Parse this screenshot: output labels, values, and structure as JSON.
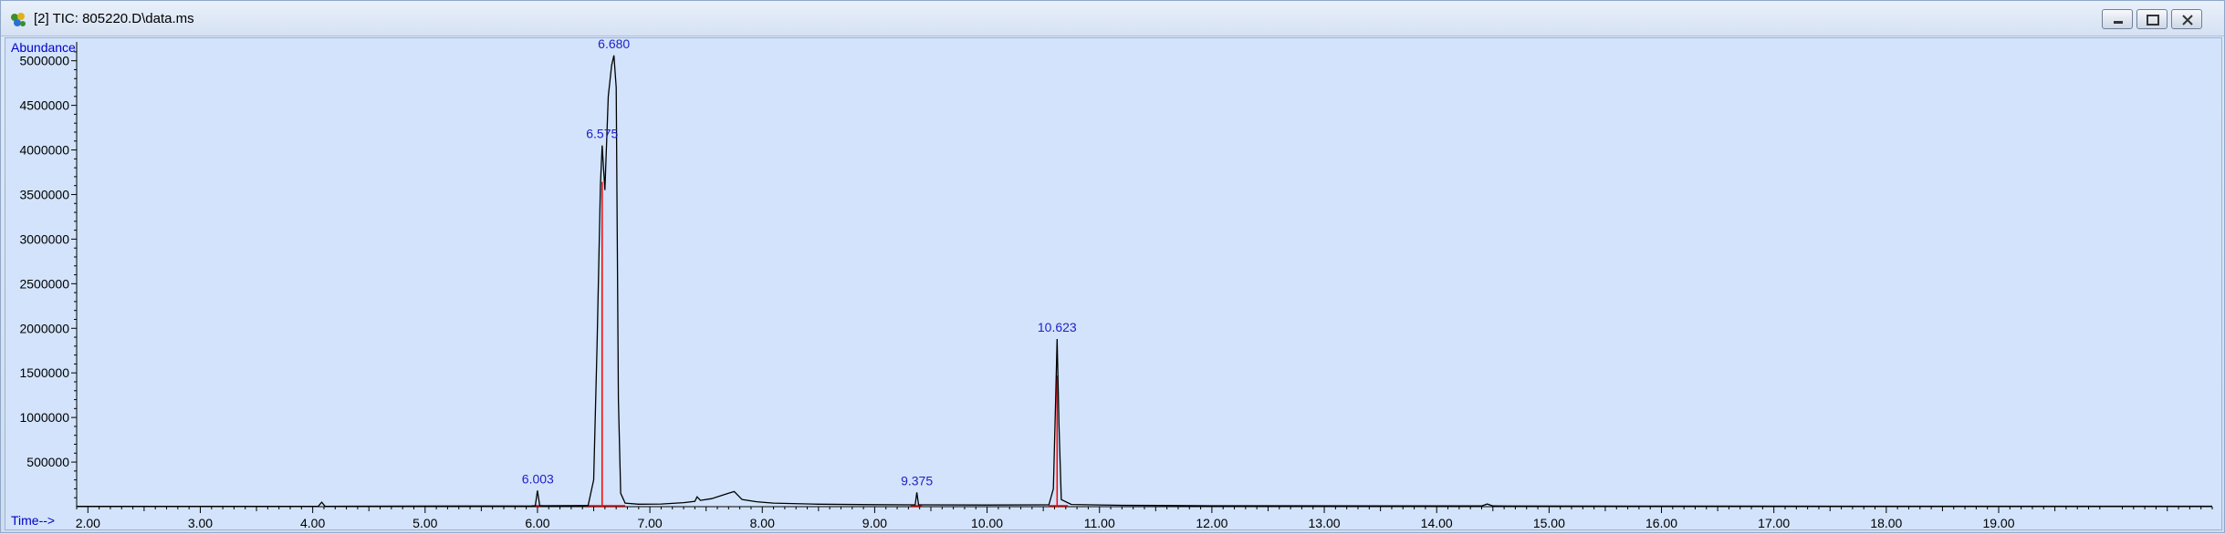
{
  "window": {
    "title": "[2] TIC: 805220.D\\data.ms",
    "icon": "chromatogram-app-icon",
    "buttons": [
      "minimize-icon",
      "restore-icon",
      "close-icon"
    ]
  },
  "chart_data": {
    "type": "line",
    "title": "",
    "ylabel": "Abundance",
    "xlabel": "Time-->",
    "xlim": [
      1.9,
      20.9
    ],
    "ylim": [
      0,
      5150000
    ],
    "x_ticks": [
      "2.00",
      "3.00",
      "4.00",
      "5.00",
      "6.00",
      "7.00",
      "8.00",
      "9.00",
      "10.00",
      "11.00",
      "12.00",
      "13.00",
      "14.00",
      "15.00",
      "16.00",
      "17.00",
      "18.00",
      "19.00"
    ],
    "y_ticks": [
      "500000",
      "1000000",
      "1500000",
      "2000000",
      "2500000",
      "3000000",
      "3500000",
      "4000000",
      "4500000",
      "5000000"
    ],
    "grid": false,
    "colors": {
      "trace": "#000000",
      "peak_labels": "#1f1fc8",
      "axis_text": "#0000cc",
      "integration": "#ff0000"
    },
    "peaks": [
      {
        "label": "6.003",
        "rt": 6.003,
        "abundance": 180000
      },
      {
        "label": "6.575",
        "rt": 6.575,
        "abundance": 4050000
      },
      {
        "label": "6.680",
        "rt": 6.68,
        "abundance": 5060000
      },
      {
        "label": "9.375",
        "rt": 9.375,
        "abundance": 160000
      },
      {
        "label": "10.623",
        "rt": 10.623,
        "abundance": 1880000
      }
    ],
    "trace_points": [
      [
        1.9,
        4000
      ],
      [
        4.05,
        4000
      ],
      [
        4.08,
        50000
      ],
      [
        4.11,
        4000
      ],
      [
        5.98,
        8000
      ],
      [
        6.0,
        180000
      ],
      [
        6.02,
        10000
      ],
      [
        6.45,
        12000
      ],
      [
        6.5,
        300000
      ],
      [
        6.53,
        1800000
      ],
      [
        6.56,
        3600000
      ],
      [
        6.575,
        4050000
      ],
      [
        6.6,
        3550000
      ],
      [
        6.63,
        4600000
      ],
      [
        6.66,
        4950000
      ],
      [
        6.68,
        5060000
      ],
      [
        6.7,
        4700000
      ],
      [
        6.72,
        1200000
      ],
      [
        6.74,
        150000
      ],
      [
        6.78,
        40000
      ],
      [
        6.9,
        28000
      ],
      [
        7.1,
        30000
      ],
      [
        7.3,
        45000
      ],
      [
        7.4,
        60000
      ],
      [
        7.42,
        110000
      ],
      [
        7.45,
        70000
      ],
      [
        7.55,
        90000
      ],
      [
        7.7,
        150000
      ],
      [
        7.75,
        170000
      ],
      [
        7.82,
        80000
      ],
      [
        7.95,
        55000
      ],
      [
        8.1,
        40000
      ],
      [
        8.5,
        28000
      ],
      [
        9.0,
        22000
      ],
      [
        9.36,
        20000
      ],
      [
        9.375,
        160000
      ],
      [
        9.39,
        20000
      ],
      [
        10.0,
        18000
      ],
      [
        10.55,
        20000
      ],
      [
        10.59,
        200000
      ],
      [
        10.61,
        1200000
      ],
      [
        10.623,
        1880000
      ],
      [
        10.64,
        900000
      ],
      [
        10.66,
        80000
      ],
      [
        10.75,
        25000
      ],
      [
        11.2,
        15000
      ],
      [
        12.0,
        10000
      ],
      [
        14.4,
        8000
      ],
      [
        14.45,
        30000
      ],
      [
        14.5,
        8000
      ],
      [
        16.0,
        6000
      ],
      [
        18.0,
        5000
      ],
      [
        20.9,
        5000
      ]
    ],
    "integration_lines": [
      {
        "from_rt": 6.575,
        "to_abundance": 4050000
      },
      {
        "from_rt": 10.623,
        "to_abundance": 1880000
      }
    ]
  }
}
